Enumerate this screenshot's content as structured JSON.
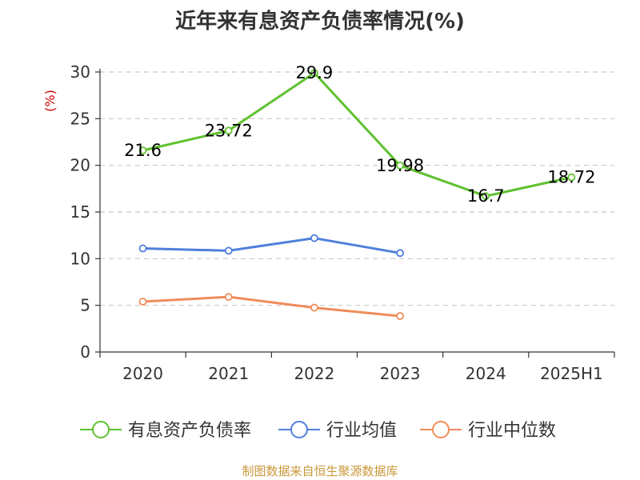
{
  "title": "近年来有息资产负债率情况(%)",
  "source": "制图数据来自恒生聚源数据库",
  "chart_data": {
    "type": "line",
    "title": "近年来有息资产负债率情况(%)",
    "ylabel": "(%)",
    "ylim": [
      0,
      30
    ],
    "yticks": [
      0,
      5,
      10,
      15,
      20,
      25,
      30
    ],
    "grid": true,
    "legend_position": "bottom",
    "categories": [
      "2020",
      "2021",
      "2022",
      "2023",
      "2024",
      "2025H1"
    ],
    "series": [
      {
        "name": "有息资产负债率",
        "color": "#5fc12f",
        "values": [
          21.6,
          23.72,
          29.9,
          19.98,
          16.7,
          18.72
        ],
        "labels": [
          "21.6",
          "23.72",
          "29.9",
          "19.98",
          "16.7",
          "18.72"
        ]
      },
      {
        "name": "行业均值",
        "color": "#4f7fdb",
        "values": [
          11.1,
          10.85,
          12.2,
          10.6,
          null,
          null
        ]
      },
      {
        "name": "行业中位数",
        "color": "#f08c5a",
        "values": [
          5.4,
          5.9,
          4.75,
          3.85,
          null,
          null
        ]
      }
    ]
  }
}
